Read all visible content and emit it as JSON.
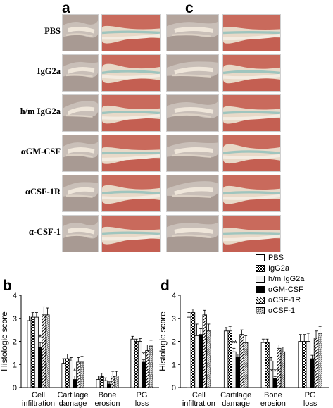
{
  "panels": {
    "a": "a",
    "b": "b",
    "c": "c",
    "d": "d"
  },
  "image_rows": [
    {
      "label": "PBS"
    },
    {
      "label": "IgG2a"
    },
    {
      "label": "h/m IgG2a"
    },
    {
      "label": "αGM-CSF"
    },
    {
      "label": "αCSF-1R"
    },
    {
      "label": "α-CSF-1"
    }
  ],
  "legend": [
    {
      "label": "PBS",
      "pattern": "white"
    },
    {
      "label": "IgG2a",
      "pattern": "checker"
    },
    {
      "label": "h/m IgG2a",
      "pattern": "light"
    },
    {
      "label": "αGM-CSF",
      "pattern": "black"
    },
    {
      "label": "αCSF-1R",
      "pattern": "hatch"
    },
    {
      "label": "αCSF-1",
      "pattern": "dots"
    }
  ],
  "chart_data": [
    {
      "panel": "b",
      "type": "bar",
      "ylabel": "Histologic score",
      "ylim": [
        0,
        4
      ],
      "yticks": [
        "0",
        "1",
        "2",
        "3",
        "4"
      ],
      "categories": [
        "Cell infiltration",
        "Cartilage damage",
        "Bone erosion",
        "PG loss"
      ],
      "category_lines": [
        [
          "Cell",
          "infiltration"
        ],
        [
          "Cartilage",
          "damage"
        ],
        [
          "Bone",
          "erosion"
        ],
        [
          "PG",
          "loss"
        ]
      ],
      "series": [
        {
          "name": "PBS",
          "values": [
            2.9,
            1.05,
            0.35,
            2.1
          ],
          "errors": [
            0.2,
            0.2,
            0.15,
            0.12
          ]
        },
        {
          "name": "IgG2a",
          "values": [
            3.05,
            1.25,
            0.5,
            2.0
          ],
          "errors": [
            0.2,
            0.2,
            0.12,
            0.1
          ]
        },
        {
          "name": "h/m IgG2a",
          "values": [
            3.05,
            1.15,
            0.3,
            2.0
          ],
          "errors": [
            0.2,
            0.15,
            0.12,
            0.12
          ]
        },
        {
          "name": "αGM-CSF",
          "values": [
            1.75,
            0.35,
            0.15,
            1.1
          ],
          "errors": [
            0.2,
            0.15,
            0.1,
            0.1
          ]
        },
        {
          "name": "αCSF-1R",
          "values": [
            3.15,
            1.1,
            0.5,
            1.6
          ],
          "errors": [
            0.35,
            0.2,
            0.2,
            0.25
          ]
        },
        {
          "name": "αCSF-1",
          "values": [
            3.15,
            1.1,
            0.5,
            1.8
          ],
          "errors": [
            0.3,
            0.25,
            0.2,
            0.25
          ]
        }
      ],
      "annotations": [
        {
          "text": "*",
          "category": 0,
          "series": 3
        },
        {
          "text": "*",
          "category": 1,
          "series": 3
        },
        {
          "text": "*",
          "category": 3,
          "series": 3
        }
      ]
    },
    {
      "panel": "d",
      "type": "bar",
      "ylabel": "Histologic score",
      "ylim": [
        0,
        4
      ],
      "yticks": [
        "0",
        "1",
        "2",
        "3",
        "4"
      ],
      "categories": [
        "Cell infiltration",
        "Cartilage damage",
        "Bone erosion",
        "PG loss"
      ],
      "category_lines": [
        [
          "Cell",
          "infiltration"
        ],
        [
          "Cartilage",
          "damage"
        ],
        [
          "Bone",
          "erosion"
        ],
        [
          "PG",
          "loss"
        ]
      ],
      "series": [
        {
          "name": "PBS",
          "values": [
            3.05,
            2.45,
            1.95,
            2.0
          ],
          "errors": [
            0.2,
            0.15,
            0.15,
            0.3
          ]
        },
        {
          "name": "IgG2a",
          "values": [
            3.25,
            2.45,
            1.95,
            2.0
          ],
          "errors": [
            0.15,
            0.2,
            0.15,
            0.3
          ]
        },
        {
          "name": "h/m IgG2a",
          "values": [
            2.25,
            1.55,
            1.15,
            2.0
          ],
          "errors": [
            0.5,
            0.15,
            0.15,
            0.35
          ]
        },
        {
          "name": "αGM-CSF",
          "values": [
            2.3,
            1.3,
            0.4,
            1.25
          ],
          "errors": [
            0.25,
            0.15,
            0.08,
            0.15
          ]
        },
        {
          "name": "αCSF-1R",
          "values": [
            3.15,
            2.3,
            1.7,
            2.15
          ],
          "errors": [
            0.2,
            0.2,
            0.15,
            0.3
          ]
        },
        {
          "name": "αCSF-1",
          "values": [
            2.45,
            1.95,
            1.55,
            2.35
          ],
          "errors": [
            0.3,
            0.3,
            0.2,
            0.3
          ]
        }
      ],
      "annotations": [
        {
          "text": "**",
          "category": 1,
          "series": 2
        },
        {
          "text": "***",
          "category": 2,
          "series": 3
        }
      ]
    }
  ],
  "colors": {
    "tissue_red": "#c0544a",
    "tissue_cream": "#efe6d8",
    "stain_teal": "#8dbfbd",
    "gray_tissue": "#b4aaa3"
  }
}
